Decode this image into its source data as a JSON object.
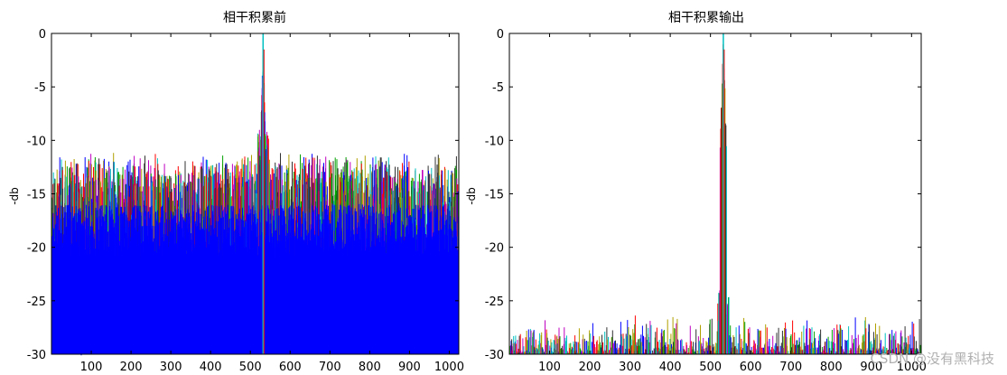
{
  "watermark": "CSDN @没有黑科技",
  "chart_data": [
    {
      "type": "line",
      "title": "相干积累前",
      "ylabel": "-db",
      "xlabel": "",
      "xlim": [
        0,
        1024
      ],
      "ylim": [
        -30,
        0
      ],
      "xticks": [
        100,
        200,
        300,
        400,
        500,
        600,
        700,
        800,
        900,
        1000
      ],
      "yticks": [
        0,
        -5,
        -10,
        -15,
        -20,
        -25,
        -30
      ],
      "peak": {
        "x": 532,
        "y": 0
      },
      "noise_floor_range": [
        -30,
        -11
      ],
      "series_colors": [
        "#0000ff",
        "#00a000",
        "#ff0000",
        "#00c0c0",
        "#c000c0",
        "#b0a000",
        "#303030"
      ]
    },
    {
      "type": "line",
      "title": "相干积累输出",
      "ylabel": "-db",
      "xlabel": "",
      "xlim": [
        0,
        1024
      ],
      "ylim": [
        -30,
        0
      ],
      "xticks": [
        100,
        200,
        300,
        400,
        500,
        600,
        700,
        800,
        900,
        1000
      ],
      "yticks": [
        0,
        -5,
        -10,
        -15,
        -20,
        -25,
        -30
      ],
      "peak": {
        "x": 532,
        "y": 0
      },
      "noise_floor_range": [
        -30,
        -26
      ],
      "series_colors": [
        "#0000ff",
        "#00a000",
        "#ff0000",
        "#00c0c0",
        "#c000c0",
        "#b0a000",
        "#303030"
      ]
    }
  ]
}
